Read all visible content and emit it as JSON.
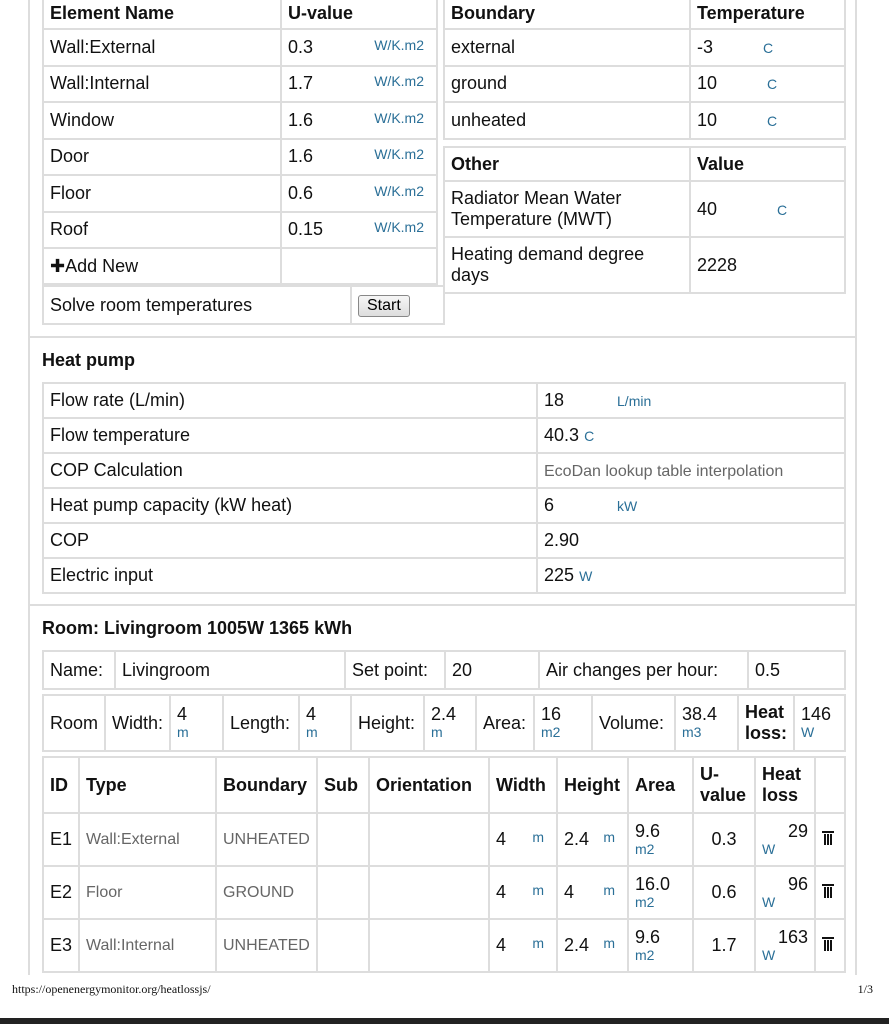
{
  "elements": {
    "headers": [
      "Element Name",
      "U-value"
    ],
    "unit": "W/K.m2",
    "rows": [
      {
        "name": "Wall:External",
        "u": "0.3"
      },
      {
        "name": "Wall:Internal",
        "u": "1.7"
      },
      {
        "name": "Window",
        "u": "1.6"
      },
      {
        "name": "Door",
        "u": "1.6"
      },
      {
        "name": "Floor",
        "u": "0.6"
      },
      {
        "name": "Roof",
        "u": "0.15"
      }
    ],
    "add_new": "Add New"
  },
  "solve": {
    "label": "Solve room temperatures",
    "button": "Start"
  },
  "boundaries": {
    "headers": [
      "Boundary",
      "Temperature"
    ],
    "unit": "C",
    "rows": [
      {
        "name": "external",
        "t": "-3"
      },
      {
        "name": "ground",
        "t": "10"
      },
      {
        "name": "unheated",
        "t": "10"
      }
    ]
  },
  "other": {
    "headers": [
      "Other",
      "Value"
    ],
    "rows": [
      {
        "name": "Radiator Mean Water Temperature (MWT)",
        "v": "40",
        "unit": "C"
      },
      {
        "name": "Heating demand degree days",
        "v": "2228",
        "unit": ""
      }
    ]
  },
  "heatpump": {
    "title": "Heat pump",
    "rows": [
      {
        "label": "Flow rate (L/min)",
        "v": "18",
        "unit": "L/min"
      },
      {
        "label": "Flow temperature",
        "v": "40.3",
        "unit": "C"
      },
      {
        "label": "COP Calculation",
        "v": "EcoDan lookup table interpolation",
        "unit": ""
      },
      {
        "label": "Heat pump capacity (kW heat)",
        "v": "6",
        "unit": "kW"
      },
      {
        "label": "COP",
        "v": "2.90",
        "unit": ""
      },
      {
        "label": "Electric input",
        "v": "225",
        "unit": "W"
      }
    ]
  },
  "room": {
    "title": "Room: Livingroom 1005W 1365 kWh",
    "name_label": "Name:",
    "name": "Livingroom",
    "setpoint_label": "Set point:",
    "setpoint": "20",
    "ach_label": "Air changes per hour:",
    "ach": "0.5",
    "dims": {
      "room": "Room",
      "width_label": "Width:",
      "width": "4",
      "length_label": "Length:",
      "length": "4",
      "height_label": "Height:",
      "height": "2.4",
      "area_label": "Area:",
      "area": "16",
      "volume_label": "Volume:",
      "volume": "38.4",
      "heatloss_label": "Heat loss:",
      "heatloss": "146",
      "m": "m",
      "m2": "m2",
      "m3": "m3",
      "w": "W"
    },
    "table_headers": [
      "ID",
      "Type",
      "Boundary",
      "Sub",
      "Orientation",
      "Width",
      "Height",
      "Area",
      "U-value",
      "Heat loss"
    ],
    "rows": [
      {
        "id": "E1",
        "type": "Wall:External",
        "boundary": "UNHEATED",
        "width": "4",
        "height": "2.4",
        "area": "9.6",
        "u": "0.3",
        "loss": "29"
      },
      {
        "id": "E2",
        "type": "Floor",
        "boundary": "GROUND",
        "width": "4",
        "height": "4",
        "area": "16.0",
        "u": "0.6",
        "loss": "96"
      },
      {
        "id": "E3",
        "type": "Wall:Internal",
        "boundary": "UNHEATED",
        "width": "4",
        "height": "2.4",
        "area": "9.6",
        "u": "1.7",
        "loss": "163"
      }
    ]
  },
  "footer": {
    "url": "https://openenergymonitor.org/heatlossjs/",
    "page": "1/3"
  }
}
